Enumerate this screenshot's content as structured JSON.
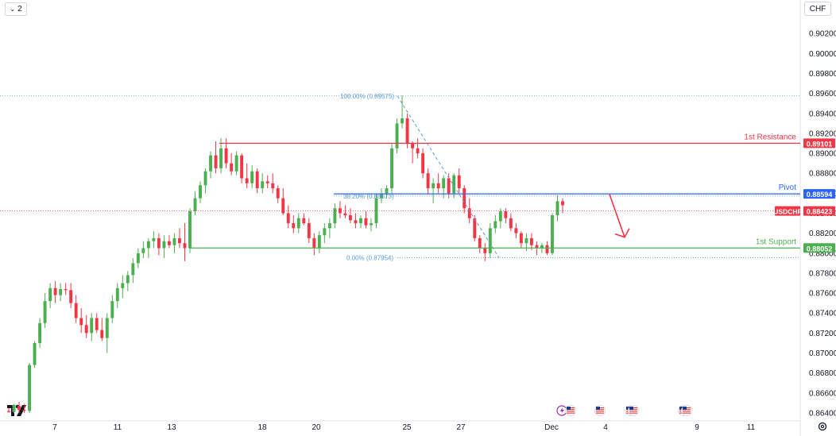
{
  "toolbar": {
    "collapse_count": "2",
    "currency": "CHF"
  },
  "icons": [
    "chevron-down-icon",
    "gear-icon",
    "tradingview-logo",
    "us-flag-event-icon",
    "lightning-event-icon"
  ],
  "chart_data": {
    "type": "candlestick",
    "symbol": "USDCHF",
    "ylim": [
      0.8632,
      0.9048
    ],
    "y_ticks": [
      "0.90200",
      "0.90000",
      "0.89800",
      "0.89600",
      "0.89400",
      "0.89200",
      "0.89000",
      "0.88800",
      "0.88600",
      "0.88400",
      "0.88200",
      "0.88000",
      "0.87800",
      "0.87600",
      "0.87400",
      "0.87200",
      "0.87000",
      "0.86800",
      "0.86600",
      "0.86400"
    ],
    "x_ticks": [
      "7",
      "11",
      "13",
      "18",
      "20",
      "25",
      "27",
      "Dec",
      "4",
      "9",
      "11"
    ],
    "candles": [
      [
        0.8642,
        0.8645,
        0.864,
        0.8641
      ],
      [
        0.8641,
        0.8649,
        0.864,
        0.8648
      ],
      [
        0.8647,
        0.8651,
        0.864,
        0.8643
      ],
      [
        0.8643,
        0.8649,
        0.864,
        0.8642
      ],
      [
        0.8642,
        0.869,
        0.864,
        0.8688
      ],
      [
        0.8688,
        0.8712,
        0.8685,
        0.871
      ],
      [
        0.871,
        0.8735,
        0.8705,
        0.873
      ],
      [
        0.873,
        0.876,
        0.8725,
        0.8752
      ],
      [
        0.8752,
        0.877,
        0.8745,
        0.8765
      ],
      [
        0.8765,
        0.8772,
        0.875,
        0.8758
      ],
      [
        0.8758,
        0.877,
        0.8752,
        0.8764
      ],
      [
        0.8764,
        0.877,
        0.8758,
        0.8763
      ],
      [
        0.8763,
        0.877,
        0.8745,
        0.875
      ],
      [
        0.875,
        0.8758,
        0.873,
        0.8735
      ],
      [
        0.8735,
        0.8745,
        0.872,
        0.8728
      ],
      [
        0.8728,
        0.8738,
        0.8715,
        0.872
      ],
      [
        0.872,
        0.874,
        0.8712,
        0.8735
      ],
      [
        0.8735,
        0.874,
        0.872,
        0.8723
      ],
      [
        0.8723,
        0.8735,
        0.8712,
        0.8715
      ],
      [
        0.8715,
        0.874,
        0.87,
        0.8735
      ],
      [
        0.8735,
        0.8758,
        0.873,
        0.8752
      ],
      [
        0.8752,
        0.877,
        0.8745,
        0.8765
      ],
      [
        0.8765,
        0.8778,
        0.8755,
        0.877
      ],
      [
        0.877,
        0.8782,
        0.8762,
        0.8778
      ],
      [
        0.8778,
        0.8795,
        0.877,
        0.879
      ],
      [
        0.879,
        0.8805,
        0.8785,
        0.88
      ],
      [
        0.88,
        0.8812,
        0.8795,
        0.8805
      ],
      [
        0.8805,
        0.8815,
        0.8795,
        0.8812
      ],
      [
        0.8812,
        0.8822,
        0.8805,
        0.8815
      ],
      [
        0.8815,
        0.882,
        0.8798,
        0.8805
      ],
      [
        0.8805,
        0.8818,
        0.8795,
        0.8812
      ],
      [
        0.8812,
        0.8818,
        0.8805,
        0.8808
      ],
      [
        0.8808,
        0.882,
        0.88,
        0.8815
      ],
      [
        0.8815,
        0.8825,
        0.8805,
        0.881
      ],
      [
        0.881,
        0.883,
        0.8792,
        0.8805
      ],
      [
        0.8805,
        0.8845,
        0.88,
        0.8842
      ],
      [
        0.8842,
        0.8862,
        0.8838,
        0.8855
      ],
      [
        0.8855,
        0.8872,
        0.885,
        0.8868
      ],
      [
        0.8868,
        0.8885,
        0.886,
        0.8882
      ],
      [
        0.8882,
        0.8902,
        0.8875,
        0.8898
      ],
      [
        0.8898,
        0.8912,
        0.888,
        0.8885
      ],
      [
        0.8885,
        0.8915,
        0.888,
        0.8905
      ],
      [
        0.8905,
        0.8915,
        0.8885,
        0.889
      ],
      [
        0.889,
        0.89,
        0.8878,
        0.8882
      ],
      [
        0.8882,
        0.8902,
        0.8878,
        0.8898
      ],
      [
        0.8898,
        0.89,
        0.887,
        0.8875
      ],
      [
        0.8875,
        0.889,
        0.8865,
        0.887
      ],
      [
        0.887,
        0.8888,
        0.8865,
        0.8882
      ],
      [
        0.8882,
        0.8885,
        0.886,
        0.8865
      ],
      [
        0.8865,
        0.888,
        0.886,
        0.8872
      ],
      [
        0.8872,
        0.8878,
        0.8865,
        0.887
      ],
      [
        0.887,
        0.888,
        0.886,
        0.8865
      ],
      [
        0.8865,
        0.8868,
        0.885,
        0.8855
      ],
      [
        0.8855,
        0.8865,
        0.8838,
        0.884
      ],
      [
        0.884,
        0.8848,
        0.8825,
        0.883
      ],
      [
        0.883,
        0.8838,
        0.882,
        0.8825
      ],
      [
        0.8825,
        0.884,
        0.882,
        0.8835
      ],
      [
        0.8835,
        0.884,
        0.8828,
        0.883
      ],
      [
        0.883,
        0.8835,
        0.881,
        0.8815
      ],
      [
        0.8815,
        0.882,
        0.8798,
        0.8805
      ],
      [
        0.8805,
        0.8822,
        0.88,
        0.8818
      ],
      [
        0.8818,
        0.883,
        0.881,
        0.8825
      ],
      [
        0.8825,
        0.8835,
        0.8815,
        0.883
      ],
      [
        0.883,
        0.885,
        0.8825,
        0.8845
      ],
      [
        0.8845,
        0.8852,
        0.8835,
        0.884
      ],
      [
        0.884,
        0.8848,
        0.8835,
        0.8838
      ],
      [
        0.8838,
        0.8845,
        0.883,
        0.8833
      ],
      [
        0.8833,
        0.884,
        0.8825,
        0.883
      ],
      [
        0.883,
        0.8838,
        0.8825,
        0.8835
      ],
      [
        0.8835,
        0.8842,
        0.8825,
        0.8828
      ],
      [
        0.8828,
        0.8835,
        0.8822,
        0.883
      ],
      [
        0.883,
        0.886,
        0.8825,
        0.8855
      ],
      [
        0.8855,
        0.8865,
        0.885,
        0.886
      ],
      [
        0.886,
        0.8868,
        0.8855,
        0.8865
      ],
      [
        0.8865,
        0.891,
        0.886,
        0.8905
      ],
      [
        0.8905,
        0.8935,
        0.89,
        0.893
      ],
      [
        0.893,
        0.8958,
        0.8925,
        0.8935
      ],
      [
        0.8935,
        0.894,
        0.8905,
        0.891
      ],
      [
        0.891,
        0.8912,
        0.889,
        0.8905
      ],
      [
        0.8905,
        0.8915,
        0.8895,
        0.89
      ],
      [
        0.89,
        0.8905,
        0.8875,
        0.888
      ],
      [
        0.888,
        0.8885,
        0.886,
        0.8865
      ],
      [
        0.8865,
        0.8875,
        0.885,
        0.887
      ],
      [
        0.887,
        0.888,
        0.886,
        0.8865
      ],
      [
        0.8865,
        0.8878,
        0.8855,
        0.8875
      ],
      [
        0.8875,
        0.888,
        0.8855,
        0.886
      ],
      [
        0.886,
        0.888,
        0.8855,
        0.8878
      ],
      [
        0.8878,
        0.8885,
        0.886,
        0.8865
      ],
      [
        0.8865,
        0.8868,
        0.884,
        0.8845
      ],
      [
        0.8845,
        0.8855,
        0.883,
        0.8835
      ],
      [
        0.8835,
        0.8838,
        0.8812,
        0.8815
      ],
      [
        0.8815,
        0.8818,
        0.88,
        0.8805
      ],
      [
        0.8805,
        0.881,
        0.8792,
        0.88
      ],
      [
        0.88,
        0.883,
        0.8795,
        0.8825
      ],
      [
        0.8825,
        0.8838,
        0.882,
        0.8832
      ],
      [
        0.8832,
        0.8845,
        0.8825,
        0.8842
      ],
      [
        0.8842,
        0.8845,
        0.883,
        0.8835
      ],
      [
        0.8835,
        0.884,
        0.8822,
        0.8825
      ],
      [
        0.8825,
        0.883,
        0.8815,
        0.882
      ],
      [
        0.882,
        0.8822,
        0.8805,
        0.881
      ],
      [
        0.881,
        0.882,
        0.8802,
        0.8815
      ],
      [
        0.8815,
        0.882,
        0.8803,
        0.8808
      ],
      [
        0.8808,
        0.8812,
        0.8798,
        0.8805
      ],
      [
        0.8805,
        0.881,
        0.88,
        0.8808
      ],
      [
        0.8808,
        0.8812,
        0.8798,
        0.88
      ],
      [
        0.88,
        0.884,
        0.8798,
        0.8838
      ],
      [
        0.8838,
        0.8858,
        0.8832,
        0.8852
      ],
      [
        0.8852,
        0.8855,
        0.884,
        0.8848
      ]
    ],
    "horizontal_levels": [
      {
        "label": "1st Resistance",
        "value": 0.89101,
        "price_label": "0.89101",
        "color": "#f23645"
      },
      {
        "label": "Pivot",
        "value": 0.88594,
        "price_label": "0.88594",
        "color": "#2962ff"
      },
      {
        "label": "1st Support",
        "value": 0.88052,
        "price_label": "0.88052",
        "color": "#4caf50"
      }
    ],
    "current_price": {
      "symbol": "USDCHF",
      "value": 0.88423,
      "price_label": "0.88423",
      "color": "#f23645"
    },
    "fibonacci": [
      {
        "label": "100.00% (0.89575)",
        "value": 0.89575
      },
      {
        "label": "38.20% (0.88573)",
        "value": 0.88573
      },
      {
        "label": "0.00% (0.87954)",
        "value": 0.87954
      }
    ],
    "projection_arrow": {
      "from": 0.8859,
      "to": 0.8816,
      "color": "#f23645"
    },
    "colors": {
      "up": "#4caf50",
      "down": "#f23645",
      "grid": "#f0f3fa",
      "fib": "#5b9bd5"
    }
  }
}
